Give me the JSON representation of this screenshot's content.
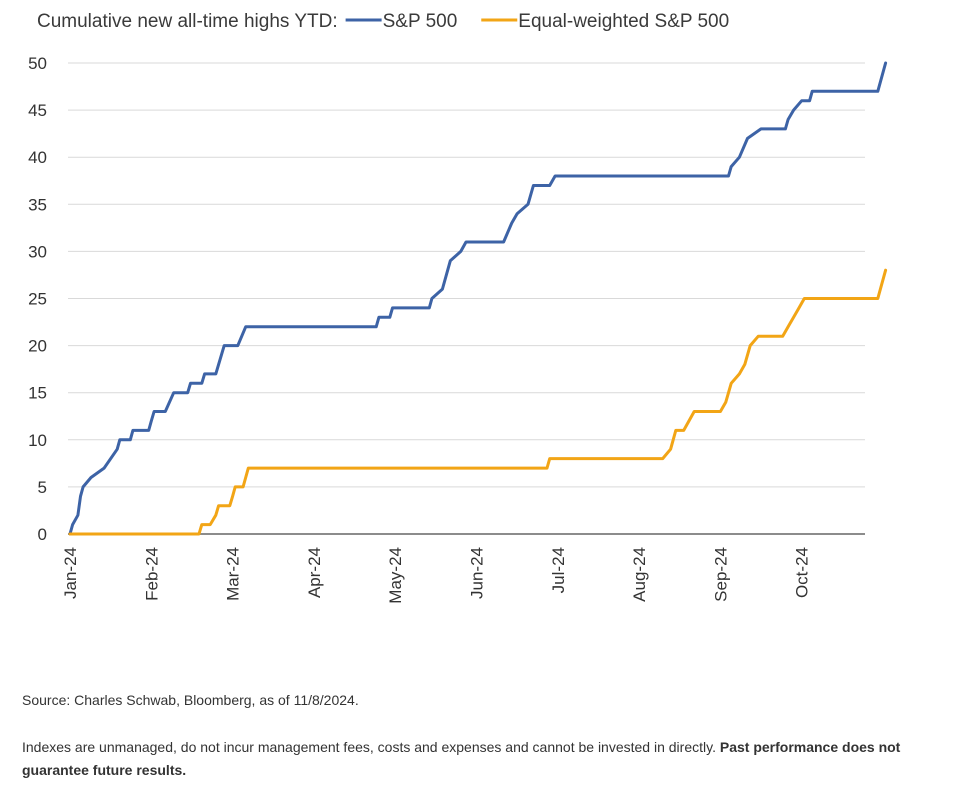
{
  "chart_data": {
    "type": "line",
    "title_prefix": "Cumulative new all-time highs YTD:",
    "x_labels": [
      "Jan-24",
      "Feb-24",
      "Mar-24",
      "Apr-24",
      "May-24",
      "Jun-24",
      "Jul-24",
      "Aug-24",
      "Sep-24",
      "Oct-24"
    ],
    "y_ticks": [
      "0",
      "5",
      "10",
      "15",
      "20",
      "25",
      "30",
      "35",
      "40",
      "45",
      "50"
    ],
    "ylim": [
      0,
      50
    ],
    "grid": true,
    "legend": "top",
    "series": [
      {
        "name": "S&P 500",
        "color": "#3d63a6",
        "points": [
          [
            "2024-01-01",
            0
          ],
          [
            "2024-01-02",
            1
          ],
          [
            "2024-01-04",
            2
          ],
          [
            "2024-01-05",
            4
          ],
          [
            "2024-01-06",
            5
          ],
          [
            "2024-01-09",
            6
          ],
          [
            "2024-01-14",
            7
          ],
          [
            "2024-01-19",
            9
          ],
          [
            "2024-01-20",
            10
          ],
          [
            "2024-01-24",
            10
          ],
          [
            "2024-01-25",
            11
          ],
          [
            "2024-01-31",
            11
          ],
          [
            "2024-02-01",
            12
          ],
          [
            "2024-02-02",
            13
          ],
          [
            "2024-02-06",
            13
          ],
          [
            "2024-02-09",
            15
          ],
          [
            "2024-02-14",
            15
          ],
          [
            "2024-02-15",
            16
          ],
          [
            "2024-02-19",
            16
          ],
          [
            "2024-02-20",
            17
          ],
          [
            "2024-02-24",
            17
          ],
          [
            "2024-02-27",
            20
          ],
          [
            "2024-03-03",
            20
          ],
          [
            "2024-03-06",
            22
          ],
          [
            "2024-04-24",
            22
          ],
          [
            "2024-04-25",
            23
          ],
          [
            "2024-04-29",
            23
          ],
          [
            "2024-04-30",
            24
          ],
          [
            "2024-05-14",
            24
          ],
          [
            "2024-05-15",
            25
          ],
          [
            "2024-05-19",
            26
          ],
          [
            "2024-05-22",
            29
          ],
          [
            "2024-05-26",
            30
          ],
          [
            "2024-05-28",
            31
          ],
          [
            "2024-06-11",
            31
          ],
          [
            "2024-06-14",
            33
          ],
          [
            "2024-06-16",
            34
          ],
          [
            "2024-06-20",
            35
          ],
          [
            "2024-06-22",
            37
          ],
          [
            "2024-06-28",
            37
          ],
          [
            "2024-06-30",
            38
          ],
          [
            "2024-09-04",
            38
          ],
          [
            "2024-09-05",
            39
          ],
          [
            "2024-09-08",
            40
          ],
          [
            "2024-09-11",
            42
          ],
          [
            "2024-09-16",
            43
          ],
          [
            "2024-09-25",
            43
          ],
          [
            "2024-09-26",
            44
          ],
          [
            "2024-09-28",
            45
          ],
          [
            "2024-10-01",
            46
          ],
          [
            "2024-10-04",
            46
          ],
          [
            "2024-10-05",
            47
          ],
          [
            "2024-10-30",
            47
          ],
          [
            "2024-11-02",
            50
          ]
        ]
      },
      {
        "name": "Equal-weighted S&P 500",
        "color": "#f2a516",
        "points": [
          [
            "2024-01-01",
            0
          ],
          [
            "2024-02-18",
            0
          ],
          [
            "2024-02-19",
            1
          ],
          [
            "2024-02-22",
            1
          ],
          [
            "2024-02-24",
            2
          ],
          [
            "2024-02-25",
            3
          ],
          [
            "2024-02-29",
            3
          ],
          [
            "2024-03-01",
            4
          ],
          [
            "2024-03-02",
            5
          ],
          [
            "2024-03-05",
            5
          ],
          [
            "2024-03-07",
            7
          ],
          [
            "2024-06-27",
            7
          ],
          [
            "2024-06-28",
            8
          ],
          [
            "2024-08-10",
            8
          ],
          [
            "2024-08-13",
            9
          ],
          [
            "2024-08-14",
            10
          ],
          [
            "2024-08-15",
            11
          ],
          [
            "2024-08-18",
            11
          ],
          [
            "2024-08-22",
            13
          ],
          [
            "2024-09-01",
            13
          ],
          [
            "2024-09-03",
            14
          ],
          [
            "2024-09-05",
            16
          ],
          [
            "2024-09-08",
            17
          ],
          [
            "2024-09-10",
            18
          ],
          [
            "2024-09-12",
            20
          ],
          [
            "2024-09-15",
            21
          ],
          [
            "2024-09-24",
            21
          ],
          [
            "2024-09-26",
            22
          ],
          [
            "2024-09-28",
            23
          ],
          [
            "2024-09-30",
            24
          ],
          [
            "2024-10-02",
            25
          ],
          [
            "2024-10-30",
            25
          ],
          [
            "2024-11-02",
            28
          ]
        ]
      }
    ]
  },
  "footer": {
    "source": "Source: Charles Schwab, Bloomberg, as of 11/8/2024.",
    "disclaimer": "Indexes are unmanaged, do not incur management fees, costs and expenses and cannot be invested in directly.",
    "disclaimer_bold": "Past performance does not guarantee future results."
  }
}
